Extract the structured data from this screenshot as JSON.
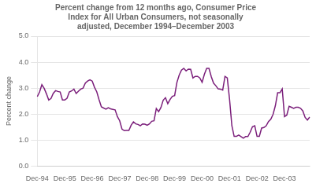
{
  "chart_data": {
    "type": "line",
    "title": "Percent change from 12 months ago, Consumer Price\nIndex for All Urban Consumers, not seasonally\nadjusted, December 1994–December 2003",
    "ylabel": "Percent change",
    "color": "#7B1F7B",
    "grid": true,
    "ylim": [
      0.0,
      5.0
    ],
    "yticks": [
      {
        "value": 0,
        "label": "0.0"
      },
      {
        "value": 1,
        "label": "1.0"
      },
      {
        "value": 2,
        "label": "2.0"
      },
      {
        "value": 3,
        "label": "3.0"
      },
      {
        "value": 4,
        "label": "4.0"
      },
      {
        "value": 5,
        "label": "5.0"
      }
    ],
    "categories": [
      "Dec-94",
      null,
      null,
      null,
      null,
      null,
      null,
      null,
      null,
      null,
      null,
      null,
      "Dec-95",
      null,
      null,
      null,
      null,
      null,
      null,
      null,
      null,
      null,
      null,
      null,
      "Dec-96",
      null,
      null,
      null,
      null,
      null,
      null,
      null,
      null,
      null,
      null,
      null,
      "Dec-97",
      null,
      null,
      null,
      null,
      null,
      null,
      null,
      null,
      null,
      null,
      null,
      "Dec-98",
      null,
      null,
      null,
      null,
      null,
      null,
      null,
      null,
      null,
      null,
      null,
      "Dec-99",
      null,
      null,
      null,
      null,
      null,
      null,
      null,
      null,
      null,
      null,
      null,
      "Dec-00",
      null,
      null,
      null,
      null,
      null,
      null,
      null,
      null,
      null,
      null,
      null,
      "Dec-01",
      null,
      null,
      null,
      null,
      null,
      null,
      null,
      null,
      null,
      null,
      null,
      "Dec-02",
      null,
      null,
      null,
      null,
      null,
      null,
      null,
      null,
      null,
      null,
      null,
      "Dec-03",
      null,
      null,
      null,
      null,
      null,
      null,
      null,
      null,
      null,
      null,
      null
    ],
    "values": [
      2.67,
      2.85,
      3.13,
      2.99,
      2.78,
      2.54,
      2.6,
      2.8,
      2.9,
      2.87,
      2.85,
      2.54,
      2.54,
      2.61,
      2.85,
      2.89,
      2.96,
      2.79,
      2.88,
      2.96,
      3.0,
      3.19,
      3.27,
      3.32,
      3.27,
      3.03,
      2.85,
      2.55,
      2.28,
      2.23,
      2.19,
      2.24,
      2.2,
      2.18,
      2.16,
      1.9,
      1.74,
      1.42,
      1.36,
      1.37,
      1.37,
      1.57,
      1.7,
      1.62,
      1.6,
      1.55,
      1.62,
      1.61,
      1.57,
      1.62,
      1.72,
      1.74,
      2.21,
      2.09,
      2.25,
      2.53,
      2.63,
      2.4,
      2.56,
      2.68,
      2.71,
      3.22,
      3.5,
      3.69,
      3.76,
      3.66,
      3.73,
      3.72,
      3.39,
      3.45,
      3.45,
      3.39,
      3.22,
      3.53,
      3.76,
      3.76,
      3.44,
      3.19,
      3.09,
      2.97,
      2.96,
      2.92,
      3.45,
      3.39,
      2.56,
      1.55,
      1.14,
      1.14,
      1.19,
      1.13,
      1.07,
      1.13,
      1.13,
      1.3,
      1.51,
      1.55,
      1.14,
      1.14,
      1.46,
      1.48,
      1.55,
      1.71,
      1.8,
      1.99,
      2.32,
      2.82,
      2.82,
      2.97,
      1.9,
      1.96,
      2.3,
      2.26,
      2.22,
      2.26,
      2.26,
      2.22,
      2.12,
      1.87,
      1.77,
      1.88
    ]
  }
}
